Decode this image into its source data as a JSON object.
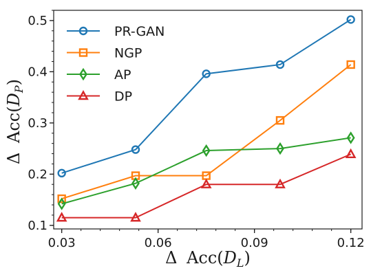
{
  "chart_data": {
    "type": "line",
    "title": "",
    "xlabel": "Δ Acc(D_L)",
    "ylabel": "Δ Acc(D_P)",
    "xlabel_parts": {
      "delta": "Δ",
      "acc": "Acc(",
      "var": "D",
      "sub": "L",
      "close": ")"
    },
    "ylabel_parts": {
      "delta": "Δ",
      "acc": "Acc(",
      "var": "D",
      "sub": "P",
      "close": ")"
    },
    "xlim": [
      0.0275,
      0.1235
    ],
    "ylim": [
      0.093,
      0.52
    ],
    "xticks": [
      0.03,
      0.06,
      0.09,
      0.12
    ],
    "xtick_labels": [
      "0.03",
      "0.06",
      "0.09",
      "0.12"
    ],
    "yticks": [
      0.1,
      0.2,
      0.3,
      0.4,
      0.5
    ],
    "ytick_labels": [
      "0.1",
      "0.2",
      "0.3",
      "0.4",
      "0.5"
    ],
    "grid": false,
    "legend_position": "top-left",
    "x": [
      0.03,
      0.053,
      0.075,
      0.098,
      0.12
    ],
    "series": [
      {
        "name": "PR-GAN",
        "marker": "circle",
        "color": "#1f77b4",
        "values": [
          0.202,
          0.248,
          0.396,
          0.414,
          0.502
        ]
      },
      {
        "name": "NGP",
        "marker": "square",
        "color": "#ff7f0e",
        "values": [
          0.152,
          0.197,
          0.197,
          0.305,
          0.414
        ]
      },
      {
        "name": "AP",
        "marker": "diamond",
        "color": "#2ca02c",
        "values": [
          0.142,
          0.182,
          0.246,
          0.25,
          0.271
        ]
      },
      {
        "name": "DP",
        "marker": "triangle",
        "color": "#d62728",
        "values": [
          0.115,
          0.115,
          0.18,
          0.18,
          0.239
        ]
      }
    ]
  }
}
